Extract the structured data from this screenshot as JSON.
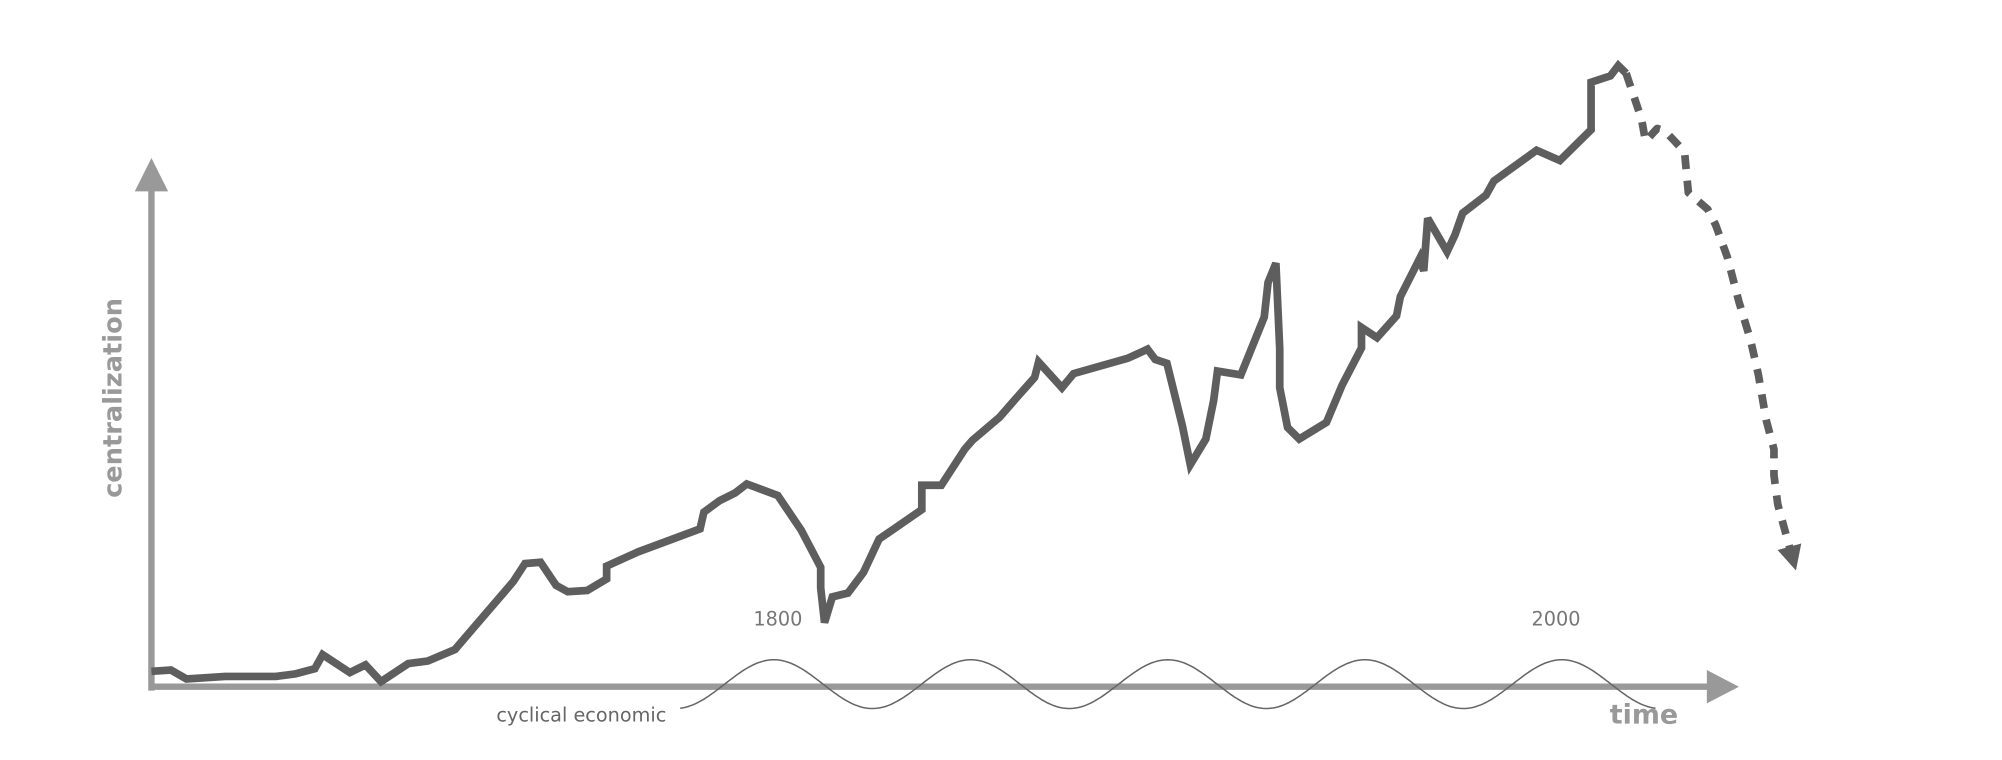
{
  "chart_data": {
    "type": "line",
    "y_label": "centralization",
    "x_label": "time",
    "annotation": "cyclical economic",
    "xlim": [
      1639,
      2047
    ],
    "xticks": [
      1800,
      2000
    ],
    "ylim": [
      0,
      100
    ],
    "x": [
      1639,
      1644,
      1648,
      1658,
      1671,
      1676,
      1681,
      1683,
      1690,
      1694,
      1698,
      1705,
      1710,
      1717,
      1732,
      1735,
      1739,
      1743,
      1746,
      1751,
      1756,
      1756,
      1764,
      1780,
      1781,
      1785,
      1789,
      1792,
      1800,
      1806,
      1811,
      1811,
      1812,
      1814,
      1818,
      1822,
      1826,
      1837,
      1837,
      1842,
      1848,
      1850,
      1857,
      1861,
      1866,
      1867,
      1873,
      1876,
      1890,
      1895,
      1897,
      1900,
      1904,
      1906,
      1910,
      1912,
      1913,
      1919,
      1925,
      1926,
      1928,
      1929,
      1929,
      1931,
      1934,
      1941,
      1945,
      1950,
      1950,
      1954,
      1959,
      1960,
      1965,
      1966,
      1967,
      1972,
      1974,
      1976,
      1982,
      1984,
      1995,
      2001,
      2009,
      2009,
      2014,
      2016,
      2018,
      2022,
      2023,
      2026,
      2028,
      2033,
      2034,
      2039,
      2041,
      2044,
      2047,
      2050,
      2052,
      2054,
      2056,
      2056,
      2057,
      2061
    ],
    "series": [
      {
        "color": "#5e5e5e",
        "dashed": false,
        "values": [
          2.4,
          2.6,
          1.2,
          1.6,
          1.6,
          2,
          2.8,
          5,
          2.2,
          3.4,
          0.8,
          3.6,
          4,
          5.8,
          16.4,
          19.2,
          19.4,
          15.8,
          14.8,
          15,
          16.8,
          18.8,
          21,
          24.6,
          27.2,
          29,
          30.2,
          31.6,
          29.8,
          24.4,
          18.6,
          15.4,
          10,
          14,
          14.6,
          17.8,
          23,
          27.6,
          31.4,
          31.4,
          37,
          38.4,
          42,
          44.8,
          48.2,
          50.6,
          46.6,
          48.8,
          51.2,
          52.6,
          51,
          50.4,
          40.6,
          34.6,
          38.6,
          44.6,
          49.2,
          48.6,
          57.6,
          63,
          66,
          52.6,
          46.6,
          40.4,
          38.6,
          41.2,
          47,
          52.8,
          56,
          54.4,
          57.8,
          60.8,
          66.8,
          64.8,
          73,
          67.8,
          70.4,
          73.8,
          76.6,
          78.8,
          83.6,
          82,
          86.8,
          94.2,
          95.2,
          96.8,
          95.6,
          null,
          null,
          null,
          null,
          null,
          null,
          null,
          null,
          null,
          null,
          null,
          null,
          null,
          null,
          null,
          null,
          null
        ]
      },
      {
        "color": "#5e5e5e",
        "dashed": true,
        "values": [
          null,
          null,
          null,
          null,
          null,
          null,
          null,
          null,
          null,
          null,
          null,
          null,
          null,
          null,
          null,
          null,
          null,
          null,
          null,
          null,
          null,
          null,
          null,
          null,
          null,
          null,
          null,
          null,
          null,
          null,
          null,
          null,
          null,
          null,
          null,
          null,
          null,
          null,
          null,
          null,
          null,
          null,
          null,
          null,
          null,
          null,
          null,
          null,
          null,
          null,
          null,
          null,
          null,
          null,
          null,
          null,
          null,
          null,
          null,
          null,
          null,
          null,
          null,
          null,
          null,
          null,
          null,
          null,
          null,
          null,
          null,
          null,
          null,
          null,
          null,
          null,
          null,
          null,
          null,
          null,
          null,
          null,
          null,
          null,
          null,
          null,
          95.6,
          88.4,
          85,
          87,
          86.6,
          83.4,
          77,
          74.4,
          72,
          67,
          60,
          54,
          48.6,
          41.6,
          37,
          33,
          28.4,
          19.6
        ]
      }
    ]
  }
}
